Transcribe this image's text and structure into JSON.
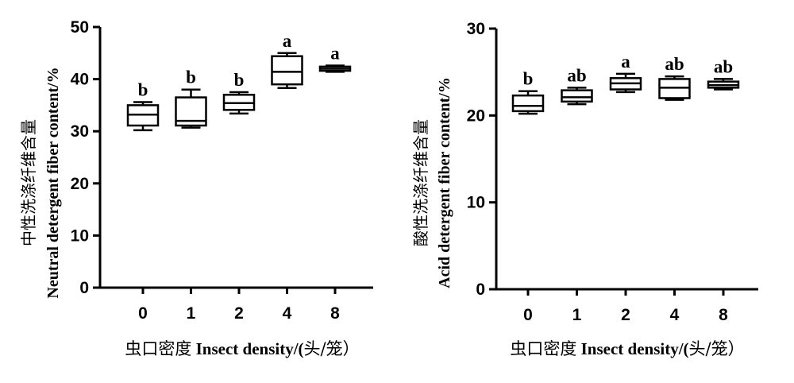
{
  "chart_data": [
    {
      "type": "box",
      "ylabel_cn": "中性洗涤纤维含量",
      "ylabel_en": "Neutral detergent fiber content/%",
      "xlabel_cn_prefix": "虫口密度",
      "xlabel_en": "Insect density/(",
      "xlabel_cn_unit": "头/笼）",
      "ylim": [
        0,
        50
      ],
      "yticks": [
        "0",
        "10",
        "20",
        "30",
        "40",
        "50"
      ],
      "categories": [
        "0",
        "1",
        "2",
        "4",
        "8"
      ],
      "boxes": [
        {
          "min": 30.2,
          "q1": 31.1,
          "median": 33.2,
          "q3": 35.0,
          "max": 35.6,
          "letter": "b"
        },
        {
          "min": 30.7,
          "q1": 31.1,
          "median": 32.0,
          "q3": 36.5,
          "max": 38.0,
          "letter": "b"
        },
        {
          "min": 33.4,
          "q1": 34.1,
          "median": 35.4,
          "q3": 37.0,
          "max": 37.5,
          "letter": "b"
        },
        {
          "min": 38.3,
          "q1": 39.0,
          "median": 41.4,
          "q3": 44.4,
          "max": 45.0,
          "letter": "a"
        },
        {
          "min": 41.4,
          "q1": 41.6,
          "median": 42.0,
          "q3": 42.4,
          "max": 42.6,
          "letter": "a"
        }
      ]
    },
    {
      "type": "box",
      "ylabel_cn": "酸性洗涤纤维含量",
      "ylabel_en": "Acid detergent fiber content/%",
      "xlabel_cn_prefix": "虫口密度",
      "xlabel_en": "Insect density/(",
      "xlabel_cn_unit": "头/笼）",
      "ylim": [
        0,
        30
      ],
      "yticks": [
        "0",
        "10",
        "20",
        "30"
      ],
      "categories": [
        "0",
        "1",
        "2",
        "4",
        "8"
      ],
      "boxes": [
        {
          "min": 20.2,
          "q1": 20.5,
          "median": 21.1,
          "q3": 22.3,
          "max": 22.8,
          "letter": "b"
        },
        {
          "min": 21.3,
          "q1": 21.6,
          "median": 22.1,
          "q3": 22.9,
          "max": 23.2,
          "letter": "ab"
        },
        {
          "min": 22.7,
          "q1": 23.0,
          "median": 23.7,
          "q3": 24.3,
          "max": 24.8,
          "letter": "a"
        },
        {
          "min": 21.8,
          "q1": 22.0,
          "median": 23.2,
          "q3": 24.2,
          "max": 24.5,
          "letter": "ab"
        },
        {
          "min": 23.0,
          "q1": 23.2,
          "median": 23.5,
          "q3": 23.9,
          "max": 24.2,
          "letter": "ab"
        }
      ]
    }
  ]
}
